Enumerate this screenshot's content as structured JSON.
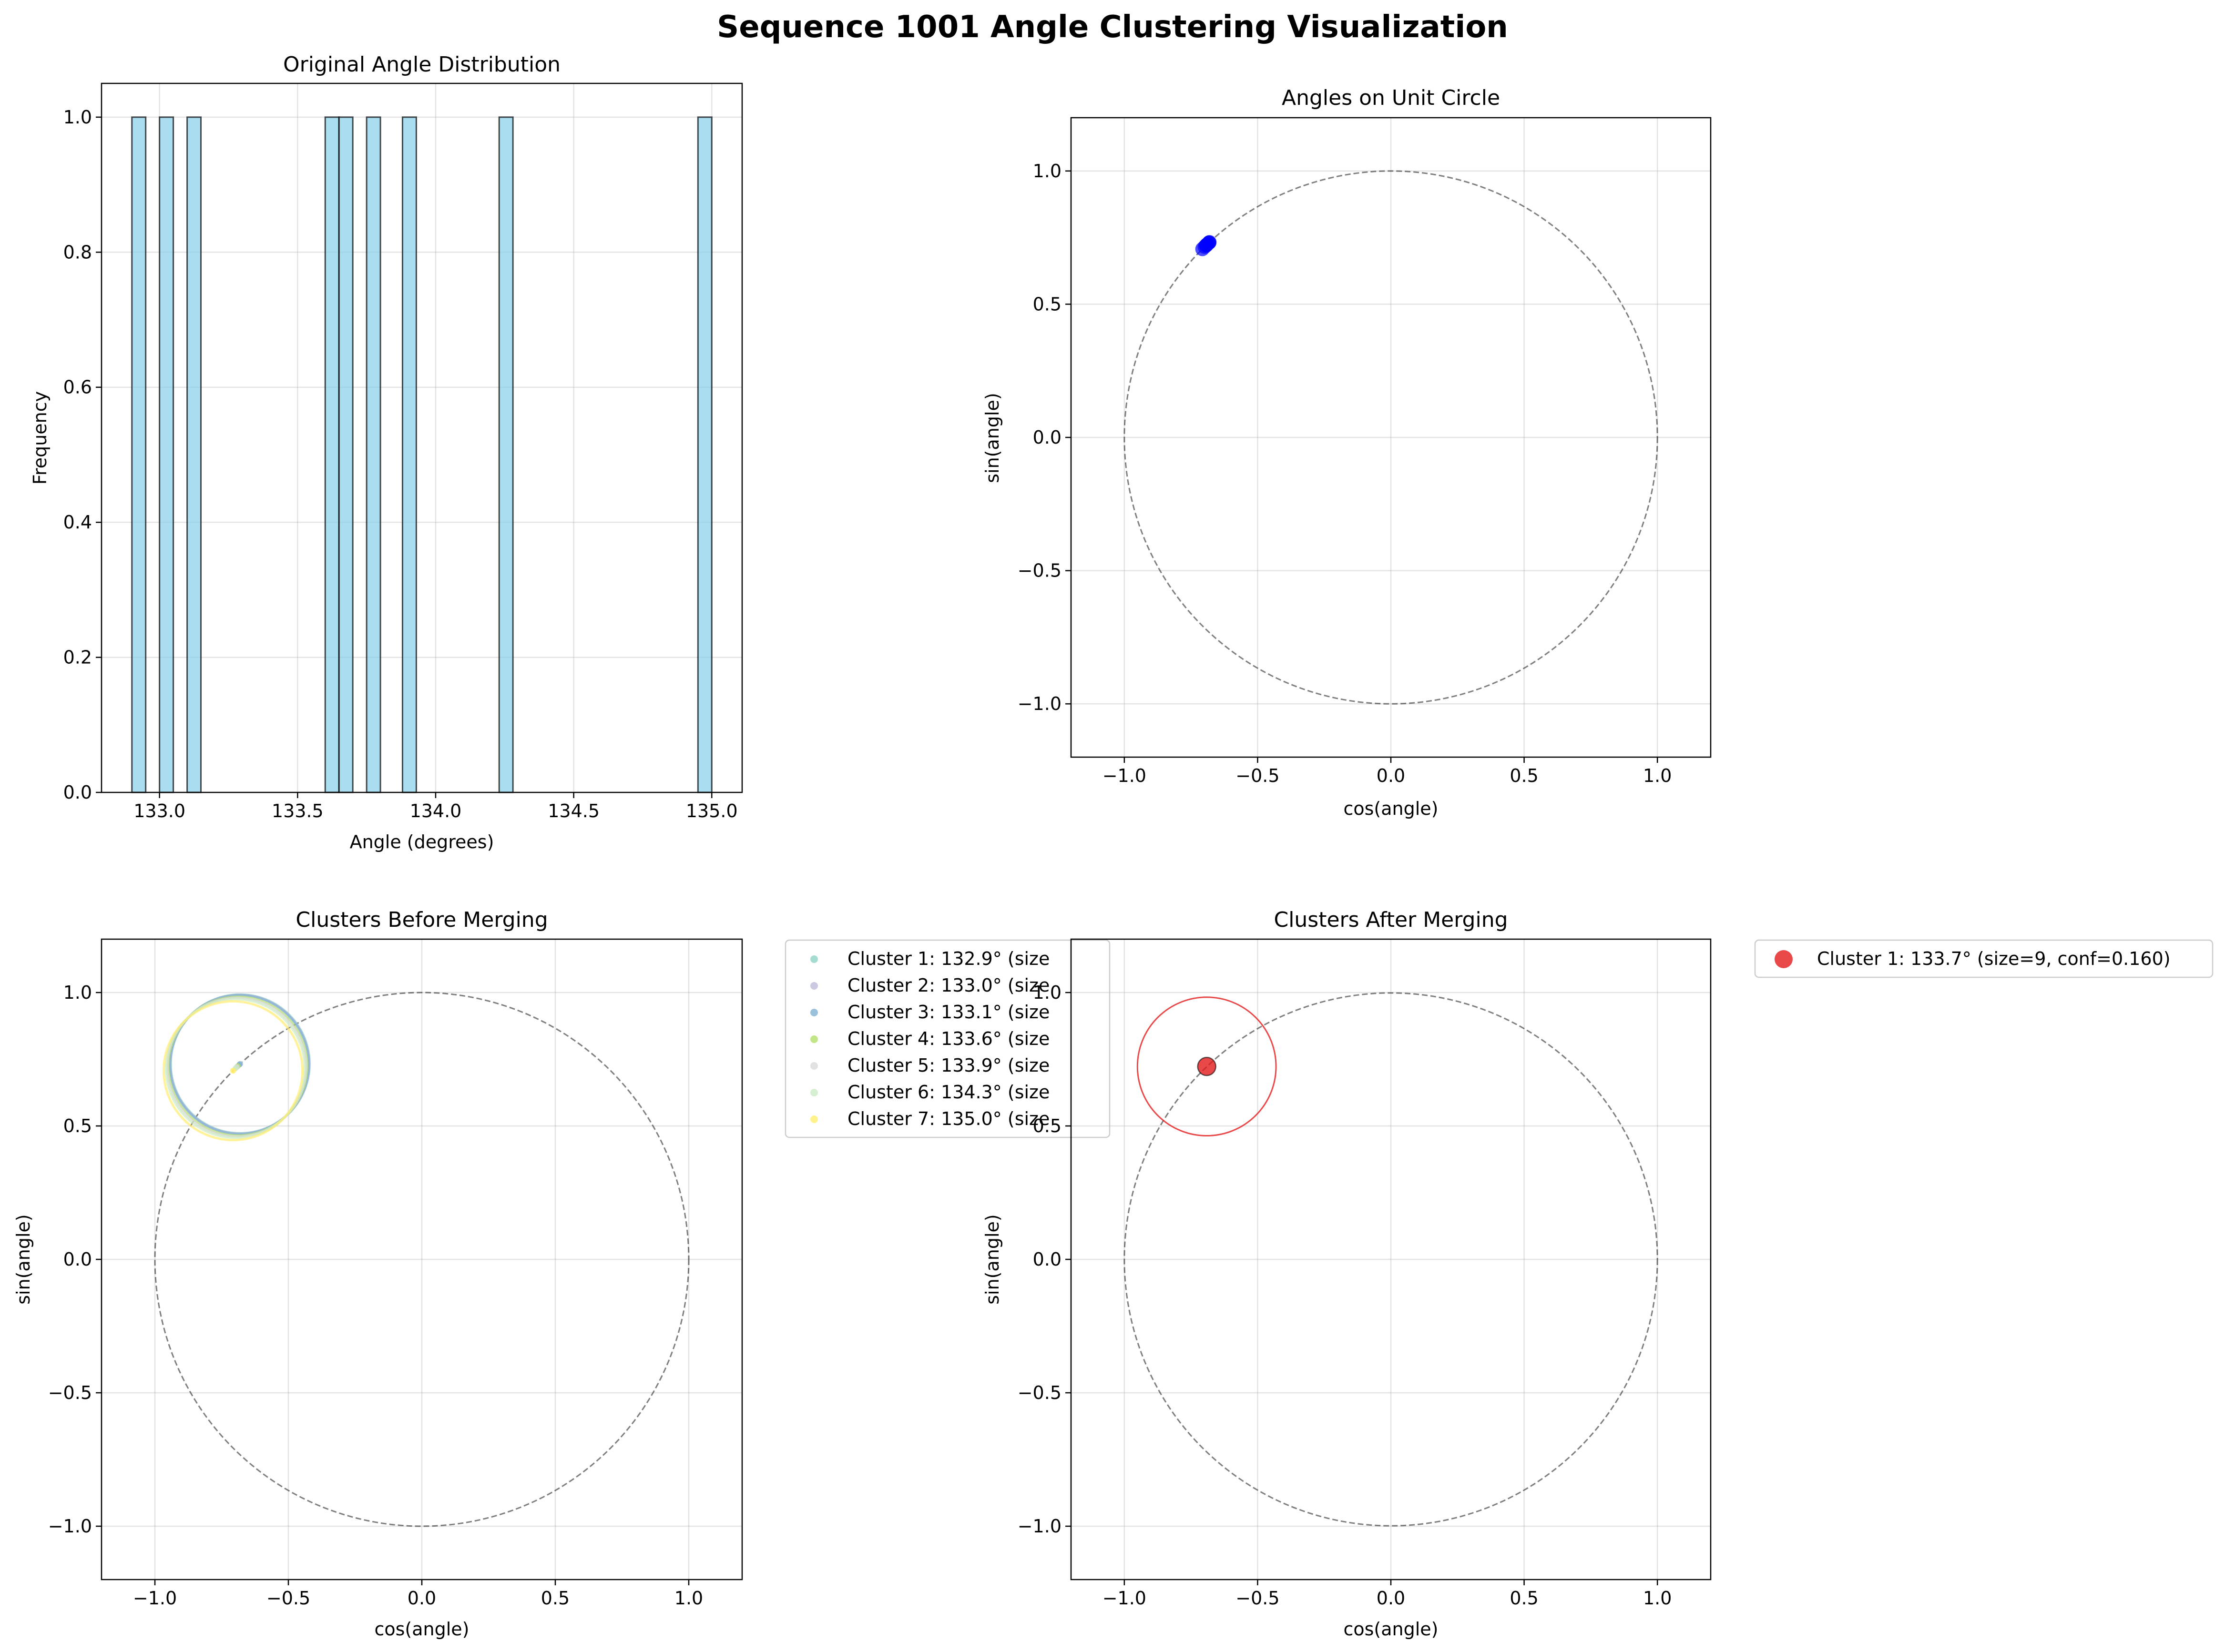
{
  "figure": {
    "title": "Sequence 1001 Angle Clustering Visualization"
  },
  "chart_data": [
    {
      "id": "hist",
      "type": "bar",
      "title": "Original Angle Distribution",
      "xlabel": "Angle (degrees)",
      "ylabel": "Frequency",
      "xlim": [
        132.79,
        135.11
      ],
      "ylim": [
        0,
        1.05
      ],
      "xticks": [
        133.0,
        133.5,
        134.0,
        134.5,
        135.0
      ],
      "yticks": [
        0.0,
        0.2,
        0.4,
        0.6,
        0.8,
        1.0
      ],
      "xtick_labels": [
        "133.0",
        "133.5",
        "134.0",
        "134.5",
        "135.0"
      ],
      "ytick_labels": [
        "0.0",
        "0.2",
        "0.4",
        "0.6",
        "0.8",
        "1.0"
      ],
      "grid": true,
      "bar_color": "#87ceeb",
      "bars": [
        {
          "start": 132.9,
          "end": 132.95,
          "value": 1
        },
        {
          "start": 133.0,
          "end": 133.05,
          "value": 1
        },
        {
          "start": 133.1,
          "end": 133.15,
          "value": 1
        },
        {
          "start": 133.6,
          "end": 133.65,
          "value": 1
        },
        {
          "start": 133.65,
          "end": 133.7,
          "value": 1
        },
        {
          "start": 133.75,
          "end": 133.8,
          "value": 1
        },
        {
          "start": 133.88,
          "end": 133.93,
          "value": 1
        },
        {
          "start": 134.23,
          "end": 134.28,
          "value": 1
        },
        {
          "start": 134.95,
          "end": 135.0,
          "value": 1
        }
      ]
    },
    {
      "id": "unit",
      "type": "scatter",
      "title": "Angles on Unit Circle",
      "xlabel": "cos(angle)",
      "ylabel": "sin(angle)",
      "xlim": [
        -1.2,
        1.2
      ],
      "ylim": [
        -1.2,
        1.2
      ],
      "xticks": [
        -1.0,
        -0.5,
        0.0,
        0.5,
        1.0
      ],
      "yticks": [
        -1.0,
        -0.5,
        0.0,
        0.5,
        1.0
      ],
      "xtick_labels": [
        "−1.0",
        "−0.5",
        "0.0",
        "0.5",
        "1.0"
      ],
      "ytick_labels": [
        "−1.0",
        "−0.5",
        "0.0",
        "0.5",
        "1.0"
      ],
      "grid": true,
      "point_color": "#0000ff",
      "angles_deg": [
        132.9,
        133.0,
        133.1,
        133.6,
        133.7,
        133.8,
        133.9,
        134.3,
        135.0
      ]
    },
    {
      "id": "before",
      "type": "scatter",
      "title": "Clusters Before Merging",
      "xlabel": "cos(angle)",
      "ylabel": "sin(angle)",
      "xlim": [
        -1.2,
        1.2
      ],
      "ylim": [
        -1.2,
        1.2
      ],
      "xticks": [
        -1.0,
        -0.5,
        0.0,
        0.5,
        1.0
      ],
      "yticks": [
        -1.0,
        -0.5,
        0.0,
        0.5,
        1.0
      ],
      "xtick_labels": [
        "−1.0",
        "−0.5",
        "0.0",
        "0.5",
        "1.0"
      ],
      "ytick_labels": [
        "−1.0",
        "−0.5",
        "0.0",
        "0.5",
        "1.0"
      ],
      "grid": true,
      "legend_position": "outside-right",
      "clusters": [
        {
          "label": "Cluster 1: 132.9° (size",
          "angle": 132.9,
          "color": "#8dd3c7",
          "ring_radius": 0.26
        },
        {
          "label": "Cluster 2: 133.0° (size",
          "angle": 133.0,
          "color": "#bebada",
          "ring_radius": 0.26
        },
        {
          "label": "Cluster 3: 133.1° (size",
          "angle": 133.1,
          "color": "#80b1d3",
          "ring_radius": 0.26
        },
        {
          "label": "Cluster 4: 133.6° (size",
          "angle": 133.6,
          "color": "#b3de69",
          "ring_radius": 0.26
        },
        {
          "label": "Cluster 5: 133.9° (size",
          "angle": 133.9,
          "color": "#d9d9d9",
          "ring_radius": 0.26
        },
        {
          "label": "Cluster 6: 134.3° (size",
          "angle": 134.3,
          "color": "#ccebc5",
          "ring_radius": 0.26
        },
        {
          "label": "Cluster 7: 135.0° (size",
          "angle": 135.0,
          "color": "#ffed6f",
          "ring_radius": 0.26
        }
      ]
    },
    {
      "id": "after",
      "type": "scatter",
      "title": "Clusters After Merging",
      "xlabel": "cos(angle)",
      "ylabel": "sin(angle)",
      "xlim": [
        -1.2,
        1.2
      ],
      "ylim": [
        -1.2,
        1.2
      ],
      "xticks": [
        -1.0,
        -0.5,
        0.0,
        0.5,
        1.0
      ],
      "yticks": [
        -1.0,
        -0.5,
        0.0,
        0.5,
        1.0
      ],
      "xtick_labels": [
        "−1.0",
        "−0.5",
        "0.0",
        "0.5",
        "1.0"
      ],
      "ytick_labels": [
        "−1.0",
        "−0.5",
        "0.0",
        "0.5",
        "1.0"
      ],
      "grid": true,
      "legend_position": "outside-right",
      "clusters": [
        {
          "label": "Cluster 1: 133.7° (size=9, conf=0.160)",
          "angle": 133.7,
          "size": 9,
          "conf": 0.16,
          "color": "#e41a1c",
          "ring_radius": 0.26
        }
      ]
    }
  ]
}
